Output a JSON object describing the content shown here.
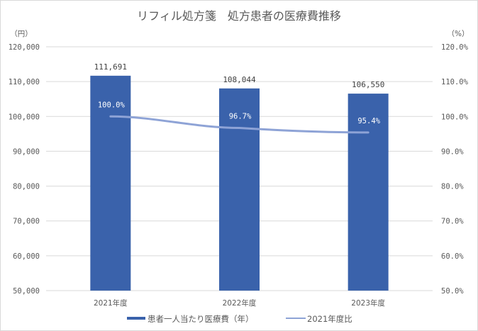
{
  "chart_data": {
    "type": "bar",
    "title": "リフィル処方箋　処方患者の医療費推移",
    "categories": [
      "2021年度",
      "2022年度",
      "2023年度"
    ],
    "y_left": {
      "unit_label": "（円）",
      "range": [
        50000,
        120000
      ],
      "step": 10000,
      "ticks": [
        "50,000",
        "60,000",
        "70,000",
        "80,000",
        "90,000",
        "100,000",
        "110,000",
        "120,000"
      ]
    },
    "y_right": {
      "unit_label": "（%）",
      "range": [
        50,
        120
      ],
      "step": 10,
      "ticks": [
        "50.0%",
        "60.0%",
        "70.0%",
        "80.0%",
        "90.0%",
        "100.0%",
        "110.0%",
        "120.0%"
      ]
    },
    "series": [
      {
        "name": "患者一人当たり医療費（年）",
        "type": "bar",
        "axis": "left",
        "color": "#3a62ab",
        "values": [
          111691,
          108044,
          106550
        ],
        "labels": [
          "111,691",
          "108,044",
          "106,550"
        ]
      },
      {
        "name": "2021年度比",
        "type": "line",
        "axis": "right",
        "color": "#8ea3d6",
        "values": [
          100.0,
          96.7,
          95.4
        ],
        "labels": [
          "100.0%",
          "96.7%",
          "95.4%"
        ]
      }
    ],
    "grid": true,
    "legend_position": "bottom"
  }
}
